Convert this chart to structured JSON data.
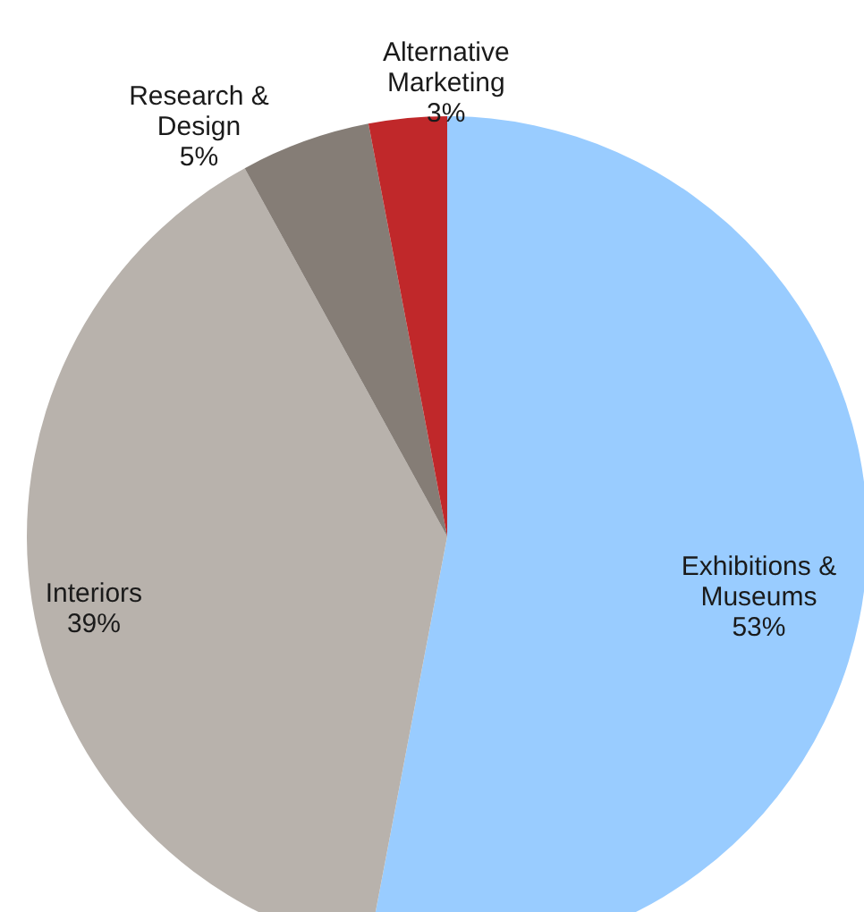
{
  "chart_data": {
    "type": "pie",
    "categories": [
      "Exhibitions &\nMuseums",
      "Interiors",
      "Research &\nDesign",
      "Alternative\nMarketing"
    ],
    "values": [
      53,
      39,
      5,
      3
    ],
    "colors": [
      "#99ccff",
      "#b8b2ac",
      "#857d76",
      "#c0282a"
    ],
    "value_labels": [
      "53%",
      "39%",
      "5%",
      "3%"
    ]
  }
}
